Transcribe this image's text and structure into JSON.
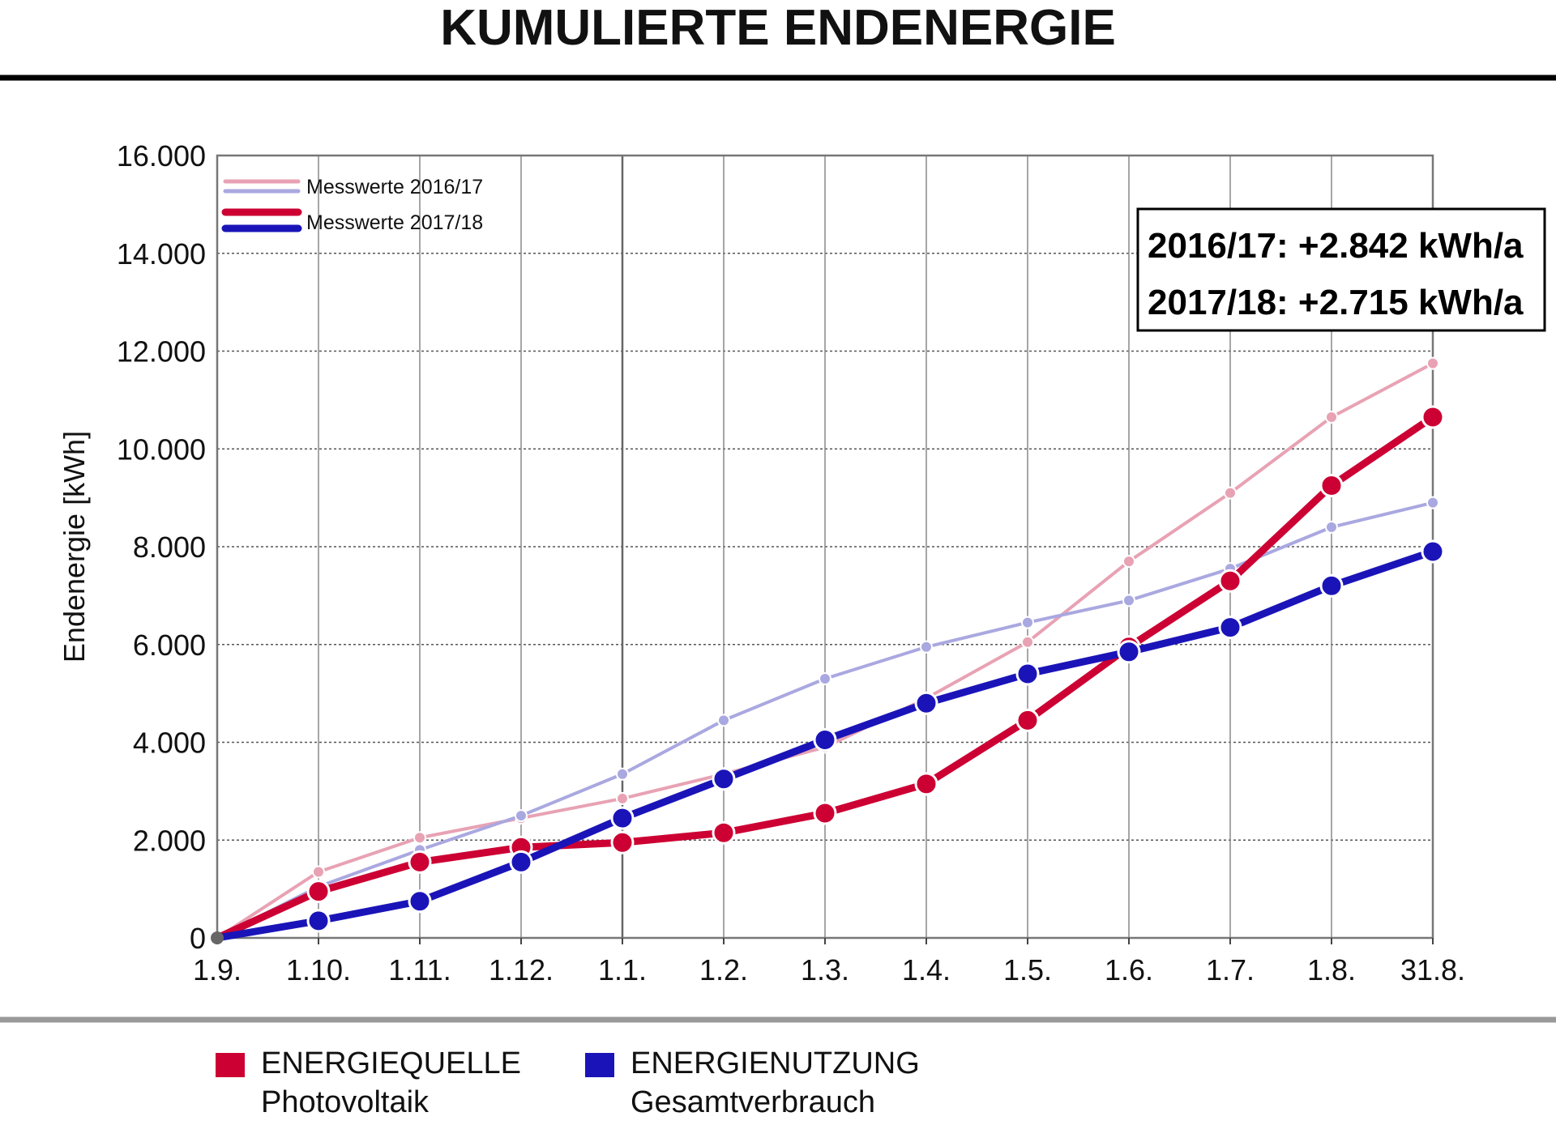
{
  "title": "KUMULIERTE ENDENERGIE",
  "colors": {
    "pv_2016": "#e8a2b4",
    "use_2016": "#aaa8e0",
    "pv_2017": "#cc0033",
    "use_2017": "#1a14b8",
    "grid": "#555555",
    "frame": "#777777"
  },
  "info_box": {
    "line1": "2016/17: +2.842 kWh/a",
    "line2": "2017/18: +2.715 kWh/a"
  },
  "bottom_legend": {
    "source_title": "ENERGIEQUELLE",
    "source_sub": "Photovoltaik",
    "use_title": "ENERGIENUTZUNG",
    "use_sub": "Gesamtverbrauch"
  },
  "chart_data": {
    "type": "line",
    "title": "KUMULIERTE ENDENERGIE",
    "xlabel": "",
    "ylabel": "Endenergie [kWh]",
    "ylim": [
      0,
      16000
    ],
    "yticks": [
      0,
      2000,
      4000,
      6000,
      8000,
      10000,
      12000,
      14000,
      16000
    ],
    "ytick_labels": [
      "0",
      "2.000",
      "4.000",
      "6.000",
      "8.000",
      "10.000",
      "12.000",
      "14.000",
      "16.000"
    ],
    "categories": [
      "1.9.",
      "1.10.",
      "1.11.",
      "1.12.",
      "1.1.",
      "1.2.",
      "1.3.",
      "1.4.",
      "1.5.",
      "1.6.",
      "1.7.",
      "1.8.",
      "31.8."
    ],
    "grid": true,
    "legend": {
      "position": "top-left",
      "entries": [
        "Messwerte 2016/17",
        "Messwerte 2017/18"
      ]
    },
    "series": [
      {
        "group": "Messwerte 2016/17",
        "kind": "ENERGIEQUELLE",
        "values": [
          0,
          1350,
          2050,
          2450,
          2850,
          3350,
          3900,
          4900,
          6050,
          7700,
          9100,
          10650,
          11750
        ]
      },
      {
        "group": "Messwerte 2016/17",
        "kind": "ENERGIENUTZUNG",
        "values": [
          0,
          1050,
          1800,
          2500,
          3350,
          4450,
          5300,
          5950,
          6450,
          6900,
          7550,
          8400,
          8900
        ]
      },
      {
        "group": "Messwerte 2017/18",
        "kind": "ENERGIEQUELLE",
        "values": [
          0,
          950,
          1550,
          1850,
          1950,
          2150,
          2550,
          3150,
          4450,
          5950,
          7300,
          9250,
          10650
        ]
      },
      {
        "group": "Messwerte 2017/18",
        "kind": "ENERGIENUTZUNG",
        "values": [
          0,
          350,
          750,
          1550,
          2450,
          3250,
          4050,
          4800,
          5400,
          5850,
          6350,
          7200,
          7900
        ]
      }
    ]
  }
}
